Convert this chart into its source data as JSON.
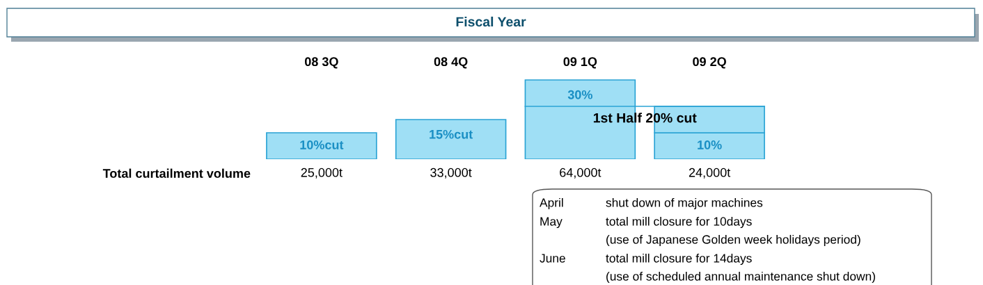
{
  "chart_data": {
    "type": "bar",
    "title": "Fiscal Year",
    "categories": [
      "08 3Q",
      "08 4Q",
      "09 1Q",
      "09 2Q"
    ],
    "stacked": true,
    "series": [
      {
        "color": "#9fdff5",
        "values": [
          10,
          15,
          30,
          10
        ],
        "value_labels": [
          "10%cut",
          "15%cut",
          "30%",
          "10%"
        ]
      },
      {
        "color": "#9fdff5",
        "values": [
          null,
          null,
          null,
          10
        ]
      }
    ],
    "ref_lines": [
      {
        "axis": "y",
        "value": 20,
        "label": "1st Half 20% cut",
        "color": "#2aa3d4"
      }
    ],
    "annotations": [
      "Total curtailment volume",
      "25,000t",
      "33,000t",
      "64,000t",
      "24,000t",
      "April",
      "shut down of major machines",
      "May",
      "total mill closure for 10days",
      "(use of Japanese Golden week holidays period)",
      "June",
      "total mill closure for 14days",
      "(use of scheduled annual maintenance shut down)"
    ],
    "grid": false,
    "legend": false
  }
}
